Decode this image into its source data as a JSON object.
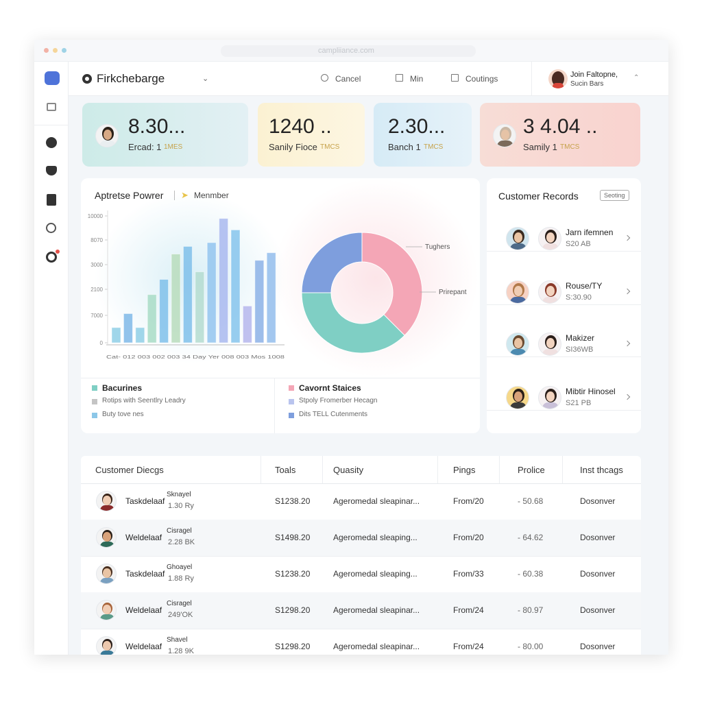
{
  "browser": {
    "url": "campliiance.com"
  },
  "header": {
    "brand": "Firkchebarge",
    "actions": [
      "Cancel",
      "Min",
      "Coutings"
    ],
    "user": {
      "name": "Join Faltopne,",
      "role": "Sucin Bars"
    }
  },
  "kpis": [
    {
      "value": "8.30...",
      "label": "Ercad: 1",
      "tag": "1MES"
    },
    {
      "value": "1240 ..",
      "label": "Sanily Fioce",
      "tag": "TMCS"
    },
    {
      "value": "2.30...",
      "label": "Banch 1",
      "tag": "TMCS"
    },
    {
      "value": "3 4.04 ..",
      "label": "Samily 1",
      "tag": "TMCS"
    }
  ],
  "panel": {
    "title": "Aptretse Powrer",
    "filter": "Menmber"
  },
  "chart_data": [
    {
      "type": "bar",
      "x_label": "Cat- 012 003 002 003 34 Day Yer 008 003 Mos 1008",
      "ylim": [
        0,
        10000
      ],
      "yticks": [
        0,
        {
          "value": 2162,
          "label": "7000"
        },
        {
          "value": 4216,
          "label": "2100"
        },
        {
          "value": 6162,
          "label": "3000"
        },
        {
          "value": 8108,
          "label": "8070"
        },
        10000
      ],
      "values": [
        1200,
        2300,
        1200,
        3800,
        5000,
        7000,
        7600,
        5600,
        7900,
        9800,
        8900,
        2900,
        6500,
        7100
      ],
      "colors": [
        "#8fcfe6",
        "#7fb9e8",
        "#8fcfe6",
        "#a8dcc6",
        "#7fc0ea",
        "#b8dcbc",
        "#7fc0ea",
        "#b4dcd0",
        "#93c4ee",
        "#a9b8ee",
        "#86c4ec",
        "#b5b6ec",
        "#8cb2e6",
        "#93bdec"
      ]
    },
    {
      "type": "pie",
      "values": [
        37.5,
        37.5,
        25
      ],
      "colors": [
        "#f4a6b6",
        "#7fcfc4",
        "#7e9edd"
      ],
      "annotations": [
        "Tughers",
        "Prirepant"
      ]
    }
  ],
  "legend": [
    {
      "name": "Bacurines",
      "color": "#7fcfc4"
    },
    {
      "name": "Rotips with Seentlry Leadry",
      "color": "#c4c4c4"
    },
    {
      "name": "Buty tove nes",
      "color": "#8cc7e8"
    },
    {
      "name": "Cavornt Staices",
      "color": "#f4a6b6"
    },
    {
      "name": "Stpoly Fromerber Hecagn",
      "color": "#b9c4ee"
    },
    {
      "name": "Dits TELL Cutenments",
      "color": "#7e9edd"
    }
  ],
  "records": {
    "title": "Customer Records",
    "button": "Seoting",
    "rows": [
      {
        "name": "Jarn ifemnen",
        "sub": "S20 AB"
      },
      {
        "name": "Rouse/TY",
        "sub": "S:30.90"
      },
      {
        "name": "Makizer",
        "sub": "SI36WB"
      },
      {
        "name": "Mibtir Hinosel",
        "sub": "S21 PB"
      }
    ]
  },
  "table": {
    "columns": [
      "Customer Diecgs",
      "Toals",
      "Quasity",
      "Pings",
      "Prolice",
      "Inst thcags"
    ],
    "rows": [
      [
        "Taskdelaaf",
        "Sknayel",
        "1.30 Ry",
        "S1238.20",
        "Ageromedal sleapinar...",
        "From/20",
        "- 50.68",
        "Dosonver"
      ],
      [
        "Weldelaaf",
        "Cisragel",
        "2.28 BK",
        "S1498.20",
        "Ageromedal sleaping...",
        "From/20",
        "- 64.62",
        "Dosonver"
      ],
      [
        "Taskdelaaf",
        "Ghoayel",
        "1.88 Ry",
        "S1238.20",
        "Ageromedal sleaping...",
        "From/33",
        "- 60.38",
        "Dosonver"
      ],
      [
        "Weldelaaf",
        "Cisragel",
        "249'OK",
        "S1298.20",
        "Ageromedal sleapinar...",
        "From/24",
        "- 80.97",
        "Dosonver"
      ],
      [
        "Weldelaaf",
        "Shavel",
        "1.28 9K",
        "S1298.20",
        "Ageromedal sleapinar...",
        "From/24",
        "- 80.00",
        "Dosonver"
      ]
    ]
  }
}
